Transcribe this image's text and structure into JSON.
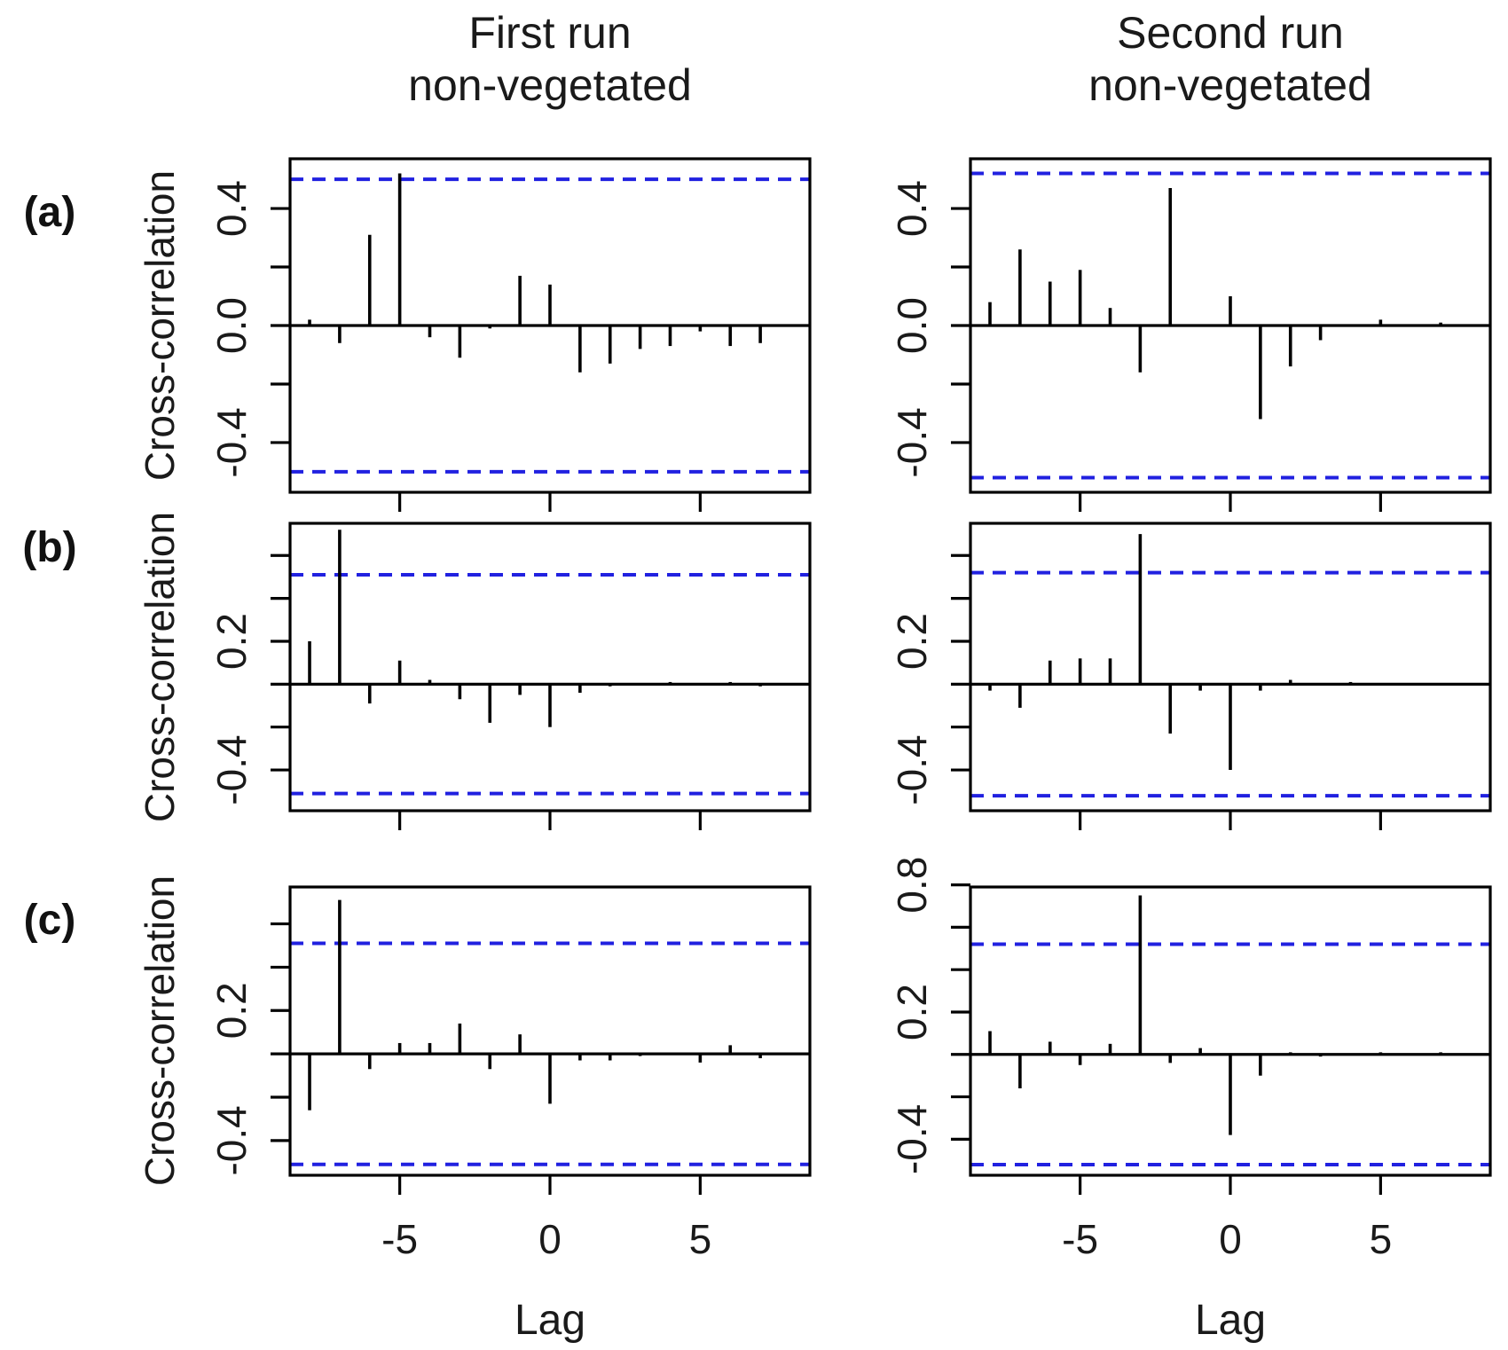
{
  "figure": {
    "columns": [
      {
        "title_line1": "First run",
        "title_line2": "non-vegetated"
      },
      {
        "title_line1": "Second run",
        "title_line2": "non-vegetated"
      }
    ],
    "rows": [
      {
        "label": "(a)"
      },
      {
        "label": "(b)"
      },
      {
        "label": "(c)"
      }
    ],
    "y_axis_title": "Cross-correlation",
    "x_axis_title": "Lag",
    "colors": {
      "line_black": "#000000",
      "conf_band_blue": "#2121e0",
      "text": "#1a1a1a"
    }
  },
  "chart_data": [
    {
      "id": "a_first",
      "type": "bar",
      "row_key": "a",
      "col_key": "first",
      "title": "First run non-vegetated (a)",
      "xlabel": "Lag",
      "ylabel": "Cross-correlation",
      "x": [
        -8,
        -7,
        -6,
        -5,
        -4,
        -3,
        -2,
        -1,
        0,
        1,
        2,
        3,
        4,
        5,
        6,
        7,
        8
      ],
      "values": [
        0.02,
        -0.06,
        0.31,
        0.52,
        -0.04,
        -0.11,
        -0.01,
        0.17,
        0.14,
        -0.16,
        -0.13,
        -0.08,
        -0.07,
        -0.02,
        -0.07,
        -0.06,
        0
      ],
      "conf_interval": 0.5,
      "ylim": [
        -0.57,
        0.57
      ],
      "yticks": [
        0.4,
        0.2,
        0,
        -0.2,
        -0.4
      ],
      "ytick_labels": [
        {
          "v": 0.4,
          "label": "0.4"
        },
        {
          "v": 0.0,
          "label": "0.0"
        },
        {
          "v": -0.4,
          "label": "-0.4"
        }
      ],
      "xticks": [
        -5,
        0,
        5
      ],
      "xtick_labels": [
        "-5",
        "0",
        "5"
      ],
      "show_x_tick_labels": false,
      "grid": false,
      "legend": false
    },
    {
      "id": "a_second",
      "type": "bar",
      "row_key": "a",
      "col_key": "second",
      "title": "Second run non-vegetated (a)",
      "xlabel": "Lag",
      "ylabel": "Cross-correlation",
      "x": [
        -8,
        -7,
        -6,
        -5,
        -4,
        -3,
        -2,
        -1,
        0,
        1,
        2,
        3,
        4,
        5,
        6,
        7,
        8
      ],
      "values": [
        0.08,
        0.26,
        0.15,
        0.19,
        0.06,
        -0.16,
        0.47,
        0,
        0.1,
        -0.32,
        -0.14,
        -0.05,
        0,
        0.02,
        0,
        0.01,
        0
      ],
      "conf_interval": 0.52,
      "ylim": [
        -0.57,
        0.57
      ],
      "yticks": [
        0.4,
        0.2,
        0,
        -0.2,
        -0.4
      ],
      "ytick_labels": [
        {
          "v": 0.4,
          "label": "0.4"
        },
        {
          "v": 0.0,
          "label": "0.0"
        },
        {
          "v": -0.4,
          "label": "-0.4"
        }
      ],
      "xticks": [
        -5,
        0,
        5
      ],
      "xtick_labels": [
        "-5",
        "0",
        "5"
      ],
      "show_x_tick_labels": false,
      "grid": false,
      "legend": false
    },
    {
      "id": "b_first",
      "type": "bar",
      "row_key": "b",
      "col_key": "first",
      "title": "First run non-vegetated (b)",
      "xlabel": "Lag",
      "ylabel": "Cross-correlation",
      "x": [
        -8,
        -7,
        -6,
        -5,
        -4,
        -3,
        -2,
        -1,
        0,
        1,
        2,
        3,
        4,
        5,
        6,
        7,
        8
      ],
      "values": [
        0.2,
        0.72,
        -0.09,
        0.11,
        0.02,
        -0.07,
        -0.18,
        -0.05,
        -0.2,
        -0.04,
        -0.01,
        0,
        0.01,
        0,
        0.01,
        -0.01,
        0
      ],
      "conf_interval": 0.51,
      "ylim": [
        -0.59,
        0.75
      ],
      "yticks": [
        0.6,
        0.4,
        0.2,
        0,
        -0.2,
        -0.4
      ],
      "ytick_labels": [
        {
          "v": 0.2,
          "label": "0.2"
        },
        {
          "v": -0.4,
          "label": "-0.4"
        }
      ],
      "xticks": [
        -5,
        0,
        5
      ],
      "xtick_labels": [
        "-5",
        "0",
        "5"
      ],
      "show_x_tick_labels": false,
      "grid": false,
      "legend": false
    },
    {
      "id": "b_second",
      "type": "bar",
      "row_key": "b",
      "col_key": "second",
      "title": "Second run non-vegetated (b)",
      "xlabel": "Lag",
      "ylabel": "Cross-correlation",
      "x": [
        -8,
        -7,
        -6,
        -5,
        -4,
        -3,
        -2,
        -1,
        0,
        1,
        2,
        3,
        4,
        5,
        6,
        7,
        8
      ],
      "values": [
        -0.03,
        -0.11,
        0.11,
        0.12,
        0.12,
        0.7,
        -0.23,
        -0.03,
        -0.4,
        -0.03,
        0.02,
        0,
        0.01,
        0,
        0,
        0,
        0
      ],
      "conf_interval": 0.52,
      "ylim": [
        -0.59,
        0.75
      ],
      "yticks": [
        0.6,
        0.4,
        0.2,
        0,
        -0.2,
        -0.4
      ],
      "ytick_labels": [
        {
          "v": 0.2,
          "label": "0.2"
        },
        {
          "v": -0.4,
          "label": "-0.4"
        }
      ],
      "xticks": [
        -5,
        0,
        5
      ],
      "xtick_labels": [
        "-5",
        "0",
        "5"
      ],
      "show_x_tick_labels": false,
      "grid": false,
      "legend": false
    },
    {
      "id": "c_first",
      "type": "bar",
      "row_key": "c",
      "col_key": "first",
      "title": "First run non-vegetated (c)",
      "xlabel": "Lag",
      "ylabel": "Cross-correlation",
      "x": [
        -8,
        -7,
        -6,
        -5,
        -4,
        -3,
        -2,
        -1,
        0,
        1,
        2,
        3,
        4,
        5,
        6,
        7,
        8
      ],
      "values": [
        -0.26,
        0.71,
        -0.07,
        0.05,
        0.05,
        0.14,
        -0.07,
        0.09,
        -0.23,
        -0.03,
        -0.03,
        -0.01,
        0,
        -0.04,
        0.04,
        -0.02,
        0
      ],
      "conf_interval": 0.51,
      "ylim": [
        -0.56,
        0.77
      ],
      "yticks": [
        0.6,
        0.4,
        0.2,
        0,
        -0.2,
        -0.4
      ],
      "ytick_labels": [
        {
          "v": 0.2,
          "label": "0.2"
        },
        {
          "v": -0.4,
          "label": "-0.4"
        }
      ],
      "xticks": [
        -5,
        0,
        5
      ],
      "xtick_labels": [
        "-5",
        "0",
        "5"
      ],
      "show_x_tick_labels": true,
      "grid": false,
      "legend": false
    },
    {
      "id": "c_second",
      "type": "bar",
      "row_key": "c",
      "col_key": "second",
      "title": "Second run non-vegetated (c)",
      "xlabel": "Lag",
      "ylabel": "Cross-correlation",
      "x": [
        -8,
        -7,
        -6,
        -5,
        -4,
        -3,
        -2,
        -1,
        0,
        1,
        2,
        3,
        4,
        5,
        6,
        7,
        8
      ],
      "values": [
        0.11,
        -0.16,
        0.06,
        -0.05,
        0.05,
        0.75,
        -0.04,
        0.03,
        -0.38,
        -0.1,
        0.01,
        -0.01,
        0,
        0.01,
        0,
        0.01,
        0
      ],
      "conf_interval": 0.52,
      "ylim": [
        -0.57,
        0.79
      ],
      "yticks": [
        0.8,
        0.6,
        0.4,
        0.2,
        0,
        -0.2,
        -0.4
      ],
      "ytick_labels": [
        {
          "v": 0.8,
          "label": "0.8"
        },
        {
          "v": 0.2,
          "label": "0.2"
        },
        {
          "v": -0.4,
          "label": "-0.4"
        }
      ],
      "xticks": [
        -5,
        0,
        5
      ],
      "xtick_labels": [
        "-5",
        "0",
        "5"
      ],
      "show_x_tick_labels": true,
      "grid": false,
      "legend": false
    }
  ]
}
